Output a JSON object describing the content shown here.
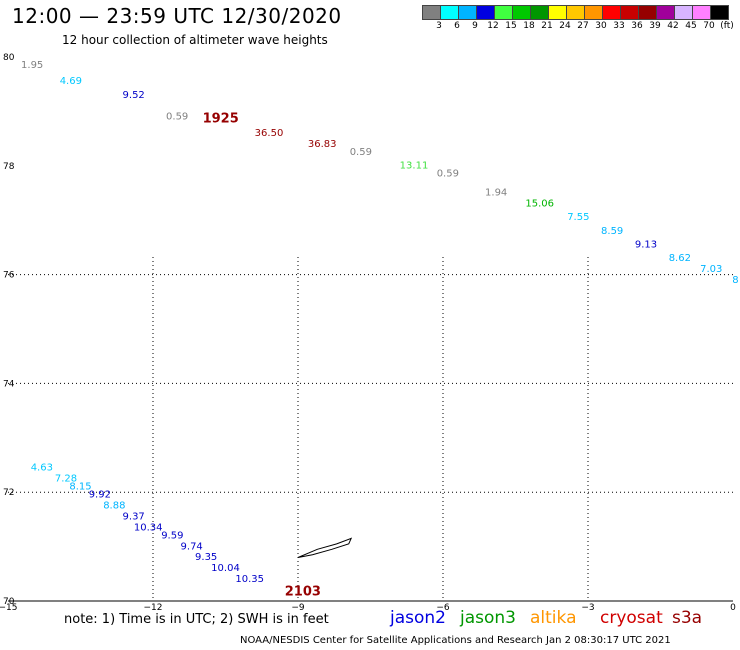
{
  "header": {
    "title": "12:00 — 23:59 UTC 12/30/2020",
    "subtitle": "12 hour collection of altimeter wave heights"
  },
  "legend": {
    "colors": [
      "#808080",
      "#00ffff",
      "#00b4ff",
      "#0000e0",
      "#40ff40",
      "#00c800",
      "#009600",
      "#ffff00",
      "#ffc800",
      "#ff9600",
      "#ff0000",
      "#c80000",
      "#960000",
      "#a0009b",
      "#d8b4ff",
      "#ff80ff",
      "#000000"
    ],
    "labels": [
      "3",
      "6",
      "9",
      "12",
      "15",
      "18",
      "21",
      "24",
      "27",
      "30",
      "33",
      "36",
      "39",
      "42",
      "45",
      "70",
      "(ft)"
    ]
  },
  "footer": {
    "note": "note: 1) Time is in UTC; 2) SWH is in feet",
    "credit": "NOAA/NESDIS Center for Satellite Applications and Research    Jan  2 08:30:17 UTC 2021"
  },
  "satellites": [
    {
      "name": "jason2",
      "color": "#0000e0"
    },
    {
      "name": "jason3",
      "color": "#009600"
    },
    {
      "name": "altika",
      "color": "#ff9600"
    },
    {
      "name": "cryosat",
      "color": "#d00000"
    },
    {
      "name": "s3a",
      "color": "#960000"
    }
  ],
  "chart_data": {
    "type": "scatter",
    "title": "12:00 — 23:59 UTC 12/30/2020",
    "subtitle": "12 hour collection of altimeter wave heights",
    "x_ticks": [
      "−15",
      "−12",
      "−9",
      "−6",
      "−3",
      "0"
    ],
    "y_ticks": [
      "70",
      "72",
      "74",
      "76",
      "78",
      "80"
    ],
    "xlim": [
      -15,
      0
    ],
    "ylim": [
      70,
      80
    ],
    "grid": true,
    "time_labels": [
      {
        "text": "1925",
        "lon": -10.6,
        "lat": 78.8,
        "color": "#960000"
      },
      {
        "text": "2103",
        "lon": -8.9,
        "lat": 70.1,
        "color": "#960000"
      }
    ],
    "series": [
      {
        "points": [
          {
            "lon": -14.5,
            "lat": 79.8,
            "v": "1.95",
            "color": "#808080"
          },
          {
            "lon": -13.7,
            "lat": 79.5,
            "v": "4.69",
            "color": "#00c8ff"
          },
          {
            "lon": -12.4,
            "lat": 79.25,
            "v": "9.52",
            "color": "#0000c8"
          },
          {
            "lon": -11.5,
            "lat": 78.85,
            "v": "0.59",
            "color": "#808080"
          },
          {
            "lon": -9.6,
            "lat": 78.55,
            "v": "36.50",
            "color": "#960000"
          },
          {
            "lon": -8.5,
            "lat": 78.35,
            "v": "36.83",
            "color": "#960000"
          },
          {
            "lon": -7.7,
            "lat": 78.2,
            "v": "0.59",
            "color": "#808080"
          },
          {
            "lon": -6.6,
            "lat": 77.95,
            "v": "13.11",
            "color": "#40e040"
          },
          {
            "lon": -5.9,
            "lat": 77.8,
            "v": "0.59",
            "color": "#808080"
          },
          {
            "lon": -4.9,
            "lat": 77.45,
            "v": "1.94",
            "color": "#808080"
          },
          {
            "lon": -4.0,
            "lat": 77.25,
            "v": "15.06",
            "color": "#00b400"
          },
          {
            "lon": -3.2,
            "lat": 77.0,
            "v": "7.55",
            "color": "#00c8ff"
          },
          {
            "lon": -2.5,
            "lat": 76.75,
            "v": "8.59",
            "color": "#00b4ff"
          },
          {
            "lon": -1.8,
            "lat": 76.5,
            "v": "9.13",
            "color": "#0000c8"
          },
          {
            "lon": -1.1,
            "lat": 76.25,
            "v": "8.62",
            "color": "#00b4ff"
          },
          {
            "lon": -0.45,
            "lat": 76.05,
            "v": "7.03",
            "color": "#00b4ff"
          },
          {
            "lon": 0.05,
            "lat": 75.85,
            "v": "8",
            "color": "#00b4ff"
          }
        ]
      },
      {
        "points": [
          {
            "lon": -14.3,
            "lat": 72.4,
            "v": "4.63",
            "color": "#00c8ff"
          },
          {
            "lon": -13.8,
            "lat": 72.2,
            "v": "7.28",
            "color": "#00c8ff"
          },
          {
            "lon": -13.5,
            "lat": 72.05,
            "v": "8.15",
            "color": "#00b4ff"
          },
          {
            "lon": -13.1,
            "lat": 71.9,
            "v": "9.92",
            "color": "#0000c8"
          },
          {
            "lon": -12.8,
            "lat": 71.7,
            "v": "8.88",
            "color": "#00b4ff"
          },
          {
            "lon": -12.4,
            "lat": 71.5,
            "v": "9.37",
            "color": "#0000c8"
          },
          {
            "lon": -12.1,
            "lat": 71.3,
            "v": "10.34",
            "color": "#0000c8"
          },
          {
            "lon": -11.6,
            "lat": 71.15,
            "v": "9.59",
            "color": "#0000c8"
          },
          {
            "lon": -11.2,
            "lat": 70.95,
            "v": "9.74",
            "color": "#0000c8"
          },
          {
            "lon": -10.9,
            "lat": 70.75,
            "v": "9.35",
            "color": "#0000c8"
          },
          {
            "lon": -10.5,
            "lat": 70.55,
            "v": "10.04",
            "color": "#0000c8"
          },
          {
            "lon": -10.0,
            "lat": 70.35,
            "v": "10.35",
            "color": "#0000c8"
          }
        ]
      }
    ]
  },
  "map": {
    "coastline_name": "jan-mayen",
    "coastline": [
      [
        -9.0,
        70.8
      ],
      [
        -8.6,
        70.95
      ],
      [
        -8.2,
        71.05
      ],
      [
        -7.9,
        71.15
      ],
      [
        -7.95,
        71.05
      ],
      [
        -8.3,
        70.95
      ],
      [
        -8.7,
        70.85
      ],
      [
        -9.0,
        70.8
      ]
    ]
  }
}
